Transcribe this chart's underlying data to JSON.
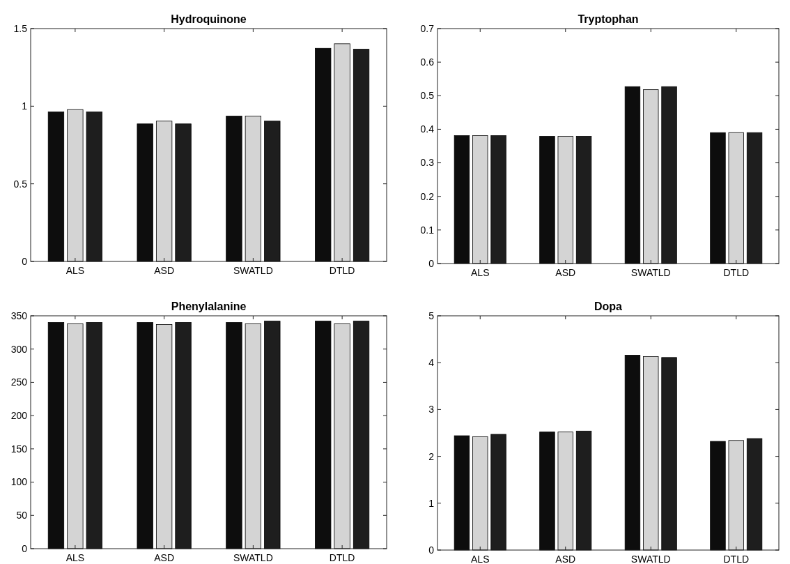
{
  "chart_data": [
    {
      "type": "bar",
      "title": "Hydroquinone",
      "categories": [
        "ALS",
        "ASD",
        "SWATLD",
        "DTLD"
      ],
      "series": [
        {
          "color": "#0d0d0d",
          "values": [
            0.963,
            0.886,
            0.936,
            1.373
          ]
        },
        {
          "color": "#d4d4d4",
          "values": [
            0.978,
            0.904,
            0.936,
            1.402
          ]
        },
        {
          "color": "#1e1e1e",
          "values": [
            0.963,
            0.886,
            0.904,
            1.367
          ]
        }
      ],
      "ylim": [
        0,
        1.5
      ],
      "yticks": [
        0,
        0.5,
        1,
        1.5
      ]
    },
    {
      "type": "bar",
      "title": "Tryptophan",
      "categories": [
        "ALS",
        "ASD",
        "SWATLD",
        "DTLD"
      ],
      "series": [
        {
          "color": "#0d0d0d",
          "values": [
            0.381,
            0.379,
            0.527,
            0.39
          ]
        },
        {
          "color": "#d4d4d4",
          "values": [
            0.381,
            0.379,
            0.518,
            0.39
          ]
        },
        {
          "color": "#1e1e1e",
          "values": [
            0.381,
            0.379,
            0.527,
            0.39
          ]
        }
      ],
      "ylim": [
        0,
        0.7
      ],
      "yticks": [
        0,
        0.1,
        0.2,
        0.3,
        0.4,
        0.5,
        0.6,
        0.7
      ]
    },
    {
      "type": "bar",
      "title": "Phenylalanine",
      "categories": [
        "ALS",
        "ASD",
        "SWATLD",
        "DTLD"
      ],
      "series": [
        {
          "color": "#0d0d0d",
          "values": [
            340,
            340,
            340,
            342
          ]
        },
        {
          "color": "#d4d4d4",
          "values": [
            338,
            337,
            338,
            338
          ]
        },
        {
          "color": "#1e1e1e",
          "values": [
            340,
            340,
            342,
            342
          ]
        }
      ],
      "ylim": [
        0,
        350
      ],
      "yticks": [
        0,
        50,
        100,
        150,
        200,
        250,
        300,
        350
      ]
    },
    {
      "type": "bar",
      "title": "Dopa",
      "categories": [
        "ALS",
        "ASD",
        "SWATLD",
        "DTLD"
      ],
      "series": [
        {
          "color": "#0d0d0d",
          "values": [
            2.44,
            2.52,
            4.16,
            2.32
          ]
        },
        {
          "color": "#d4d4d4",
          "values": [
            2.42,
            2.52,
            4.13,
            2.34
          ]
        },
        {
          "color": "#1e1e1e",
          "values": [
            2.47,
            2.54,
            4.11,
            2.38
          ]
        }
      ],
      "ylim": [
        0,
        5
      ],
      "yticks": [
        0,
        1,
        2,
        3,
        4,
        5
      ]
    }
  ]
}
